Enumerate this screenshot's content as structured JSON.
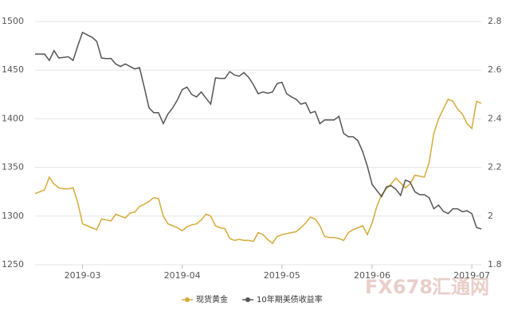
{
  "chart_data": {
    "type": "line",
    "categories": [
      null,
      null,
      null,
      null,
      null,
      null,
      null,
      null,
      null,
      null,
      "2019-03",
      null,
      null,
      null,
      null,
      null,
      null,
      null,
      null,
      null,
      null,
      null,
      null,
      null,
      null,
      null,
      null,
      null,
      null,
      null,
      null,
      "2019-04",
      null,
      null,
      null,
      null,
      null,
      null,
      null,
      null,
      null,
      null,
      null,
      null,
      null,
      null,
      null,
      null,
      null,
      null,
      null,
      null,
      "2019-05",
      null,
      null,
      null,
      null,
      null,
      null,
      null,
      null,
      null,
      null,
      null,
      null,
      null,
      null,
      null,
      null,
      null,
      null,
      "2019-06",
      null,
      null,
      null,
      null,
      null,
      null,
      null,
      null,
      null,
      null,
      null,
      null,
      null,
      null,
      null,
      null,
      null,
      null,
      null,
      null,
      "2019-07",
      null,
      null
    ],
    "series": [
      {
        "name": "现货黄金",
        "color": "#d6aa3a",
        "values": [
          1323,
          1325,
          1327,
          1340,
          1333,
          1329,
          1328,
          1328,
          1329,
          1314,
          1292,
          1290,
          1288,
          1286,
          1297,
          1296,
          1295,
          1302,
          1300,
          1298,
          1303,
          1304,
          1310,
          1312,
          1315,
          1319,
          1318,
          1300,
          1292,
          1290,
          1288,
          1285,
          1289,
          1291,
          1292,
          1296,
          1302,
          1300,
          1290,
          1288,
          1287,
          1277,
          1275,
          1276,
          1275,
          1275,
          1274,
          1283,
          1281,
          1276,
          1272,
          1279,
          1281,
          1282,
          1283,
          1284,
          1288,
          1293,
          1299,
          1297,
          1290,
          1279,
          1278,
          1278,
          1277,
          1275,
          1283,
          1286,
          1288,
          1290,
          1281,
          1293,
          1310,
          1322,
          1328,
          1333,
          1339,
          1334,
          1329,
          1333,
          1342,
          1341,
          1340,
          1355,
          1385,
          1400,
          1410,
          1420,
          1418,
          1410,
          1405,
          1395,
          1390,
          1418,
          1416
        ]
      },
      {
        "name": "10年期美债收益率",
        "color": "#555555",
        "axis": "y2",
        "values": [
          2.666,
          2.666,
          2.666,
          2.64,
          2.68,
          2.65,
          2.652,
          2.655,
          2.64,
          2.7,
          2.755,
          2.745,
          2.735,
          2.718,
          2.65,
          2.647,
          2.648,
          2.625,
          2.615,
          2.625,
          2.615,
          2.605,
          2.61,
          2.53,
          2.445,
          2.425,
          2.425,
          2.38,
          2.42,
          2.445,
          2.478,
          2.52,
          2.53,
          2.5,
          2.49,
          2.51,
          2.485,
          2.46,
          2.568,
          2.566,
          2.566,
          2.594,
          2.58,
          2.575,
          2.59,
          2.57,
          2.54,
          2.503,
          2.51,
          2.505,
          2.51,
          2.545,
          2.55,
          2.503,
          2.49,
          2.48,
          2.46,
          2.466,
          2.424,
          2.43,
          2.38,
          2.395,
          2.395,
          2.395,
          2.41,
          2.34,
          2.326,
          2.326,
          2.31,
          2.265,
          2.205,
          2.13,
          2.105,
          2.08,
          2.12,
          2.125,
          2.11,
          2.085,
          2.148,
          2.14,
          2.1,
          2.088,
          2.088,
          2.075,
          2.03,
          2.045,
          2.02,
          2.01,
          2.03,
          2.03,
          2.018,
          2.022,
          2.01,
          1.953,
          1.947
        ]
      }
    ],
    "ylim": [
      1250,
      1500
    ],
    "yticks": [
      1250,
      1300,
      1350,
      1400,
      1450,
      1500
    ],
    "y2lim": [
      1.8,
      2.8
    ],
    "y2ticks": [
      1.8,
      2,
      2.2,
      2.4,
      2.6,
      2.8
    ],
    "grid": true,
    "legend": "bottom",
    "watermark": [
      "FX678",
      "汇通网"
    ]
  }
}
